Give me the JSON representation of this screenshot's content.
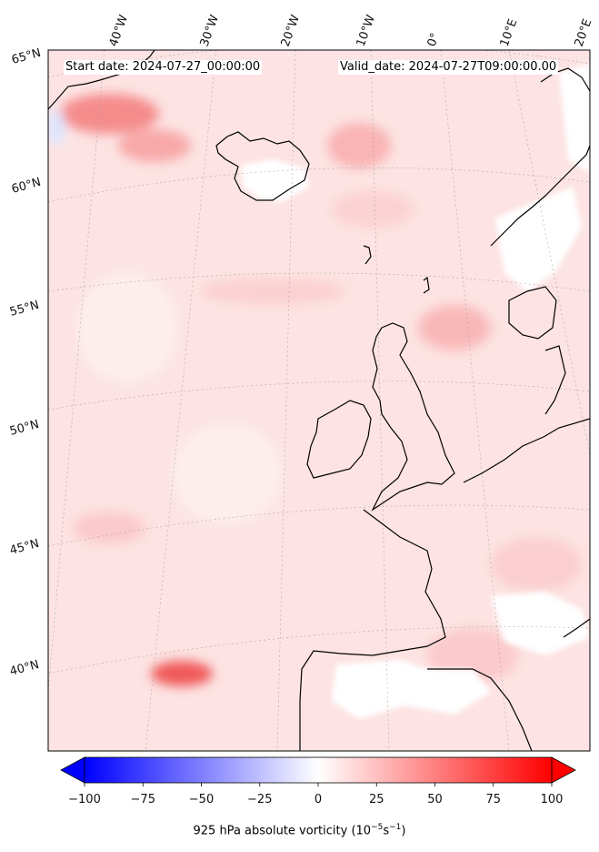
{
  "header": {
    "start_date": "Start date: 2024-07-27_00:00:00",
    "valid_date": "Valid_date: 2024-07-27T09:00:00.00"
  },
  "lon_labels": [
    "40°W",
    "30°W",
    "20°W",
    "10°W",
    "0°",
    "10°E",
    "20°E"
  ],
  "lat_labels": [
    "65°N",
    "60°N",
    "55°N",
    "50°N",
    "45°N",
    "40°N"
  ],
  "colorbar": {
    "ticks": [
      "−100",
      "−75",
      "−50",
      "−25",
      "0",
      "25",
      "50",
      "75",
      "100"
    ],
    "tick_values": [
      -100,
      -75,
      -50,
      -25,
      0,
      25,
      50,
      75,
      100
    ],
    "range": [
      -100,
      100
    ],
    "title_prefix": "925 hPa absolute vorticity (10",
    "title_exp1": "−5",
    "title_mid": "s",
    "title_exp2": "−1",
    "title_suffix": ")",
    "colormap": "bwr",
    "low_color": "#0000ff",
    "mid_color": "#ffffff",
    "high_color": "#ff0000"
  },
  "field_colors": {
    "ocean_background": "#fde3e3",
    "land_background": "#fdeaea",
    "strong_positive": "#f26a6a",
    "weak_negative": "#dde6ff",
    "zero": "#ffffff"
  }
}
